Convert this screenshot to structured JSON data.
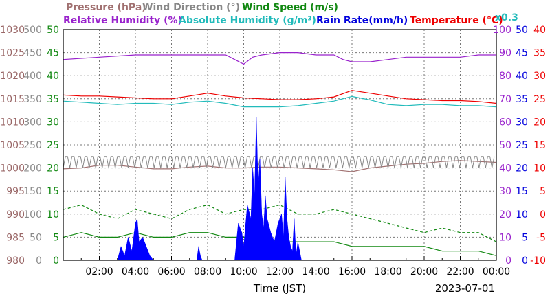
{
  "chart_data": {
    "type": "line",
    "date": "2023-07-01",
    "xlabel": "Time (JST)",
    "x_ticks": [
      "02:00",
      "04:00",
      "06:00",
      "08:00",
      "10:00",
      "12:00",
      "14:00",
      "16:00",
      "18:00",
      "20:00",
      "22:00",
      "00:00"
    ],
    "xlim_hours": [
      0,
      24
    ],
    "grid": true,
    "legend": [
      {
        "text": "Pressure (hPa)",
        "color": "#a07070"
      },
      {
        "text": "Wind Direction (°)",
        "color": "#888888"
      },
      {
        "text": "Wind Speed (m/s)",
        "color": "#118811"
      },
      {
        "text": "Relative Humidity (%)",
        "color": "#9922cc"
      },
      {
        "text": "Absolute Humidity (g/m³)",
        "color": "#22bbbb"
      },
      {
        "text": "Rain Rate(mm/h)",
        "color": "#0000dd"
      },
      {
        "text": "Temperature (°C)",
        "color": "#ee0000"
      }
    ],
    "abs_humidity_note": "x0.3",
    "axes": {
      "pressure": {
        "side": "left",
        "color": "#996666",
        "ticks": [
          "1030",
          "1025",
          "1020",
          "1015",
          "1010",
          "1005",
          "1000",
          "995",
          "990",
          "985",
          "980"
        ],
        "range": [
          980,
          1030
        ]
      },
      "wind_direction": {
        "side": "left",
        "color": "#888888",
        "ticks": [
          "500",
          "450",
          "400",
          "350",
          "300",
          "250",
          "200",
          "150",
          "100",
          "50",
          "0"
        ],
        "range": [
          0,
          500
        ]
      },
      "wind_speed": {
        "side": "left",
        "color": "#118811",
        "ticks": [
          "50",
          "45",
          "40",
          "35",
          "30",
          "25",
          "20",
          "15",
          "10",
          "5",
          "0"
        ],
        "range": [
          0,
          50
        ]
      },
      "humidity": {
        "side": "right",
        "color": "#9922cc",
        "ticks": [
          "100",
          "90",
          "80",
          "70",
          "60",
          "50",
          "40",
          "30",
          "20",
          "10",
          "0"
        ],
        "range": [
          0,
          100
        ]
      },
      "rain": {
        "side": "right",
        "color": "#0000dd",
        "ticks": [
          "50",
          "45",
          "40",
          "35",
          "30",
          "25",
          "20",
          "15",
          "10",
          "5",
          "0"
        ],
        "range": [
          0,
          50
        ]
      },
      "temperature": {
        "side": "right",
        "color": "#ee0000",
        "ticks": [
          "40",
          "35",
          "30",
          "25",
          "20",
          "15",
          "10",
          "5",
          "0",
          "-5",
          "-10"
        ],
        "range": [
          -10,
          40
        ]
      }
    },
    "series": [
      {
        "key": "relative_humidity",
        "color": "#9922cc",
        "axis": "humidity",
        "x": [
          0,
          2,
          4,
          7,
          9,
          9.5,
          10,
          10.5,
          11,
          12,
          13,
          14,
          15,
          15.5,
          16,
          17,
          18,
          19,
          20,
          22,
          23,
          24
        ],
        "y": [
          87,
          88,
          89,
          89,
          89,
          87,
          85,
          88,
          89,
          90,
          90,
          89,
          89,
          87,
          86,
          86,
          87,
          88,
          88,
          88,
          89,
          89
        ]
      },
      {
        "key": "temperature",
        "color": "#ee0000",
        "axis": "temperature",
        "x": [
          0,
          1,
          2,
          3,
          4,
          5,
          6,
          7,
          8,
          9,
          10,
          11,
          12,
          13,
          14,
          15,
          16,
          17,
          18,
          19,
          20,
          21,
          22,
          23,
          24
        ],
        "y": [
          25.8,
          25.6,
          25.6,
          25.4,
          25.2,
          25.0,
          25.0,
          25.6,
          26.2,
          25.6,
          25.2,
          25.0,
          24.8,
          24.8,
          25.0,
          25.4,
          26.8,
          26.2,
          25.6,
          25.0,
          24.8,
          24.6,
          24.6,
          24.4,
          24.0
        ]
      },
      {
        "key": "absolute_humidity_x0.3",
        "color": "#22bbbb",
        "axis": "humidity",
        "x": [
          0,
          1,
          2,
          3,
          4,
          5,
          6,
          7,
          8,
          9,
          10,
          11,
          12,
          13,
          14,
          15,
          16,
          17,
          18,
          19,
          20,
          21,
          22,
          23,
          24
        ],
        "y": [
          69.0,
          68.5,
          68.0,
          67.5,
          68.0,
          68.0,
          67.5,
          68.5,
          69.0,
          68.0,
          66.5,
          66.5,
          66.5,
          67.0,
          68.0,
          69.0,
          71.0,
          69.5,
          67.5,
          67.0,
          67.5,
          67.5,
          67.0,
          67.0,
          66.5
        ]
      },
      {
        "key": "pressure",
        "color": "#a07070",
        "axis": "pressure",
        "x": [
          0,
          1,
          2,
          3,
          4,
          5,
          6,
          7,
          8,
          9,
          10,
          11,
          12,
          13,
          14,
          15,
          16,
          17,
          18,
          19,
          20,
          21,
          22,
          23,
          24
        ],
        "y": [
          999.8,
          1000.0,
          1000.6,
          1000.6,
          1000.2,
          999.8,
          999.8,
          1000.2,
          1000.4,
          1000.0,
          1000.0,
          1000.2,
          1000.2,
          1000.0,
          999.8,
          999.6,
          999.2,
          1000.0,
          1000.4,
          1000.8,
          1001.0,
          1001.4,
          1001.6,
          1001.4,
          1001.2
        ]
      },
      {
        "key": "wind_direction",
        "color": "#888888",
        "axis": "wind_direction",
        "style": "band",
        "x": [
          0,
          24
        ],
        "y_low": 200,
        "y_high": 225
      },
      {
        "key": "wind_speed_gust",
        "color": "#118811",
        "axis": "wind_speed",
        "dash": true,
        "x": [
          0,
          1,
          2,
          3,
          4,
          5,
          6,
          7,
          8,
          9,
          10,
          11,
          12,
          13,
          14,
          15,
          16,
          17,
          18,
          19,
          20,
          21,
          22,
          23,
          24
        ],
        "y": [
          11,
          12,
          10,
          9,
          11,
          10,
          9,
          11,
          12,
          10,
          11,
          11,
          12,
          10,
          10,
          11,
          10,
          9,
          8,
          7,
          6,
          7,
          6,
          6,
          4
        ]
      },
      {
        "key": "wind_speed",
        "color": "#118811",
        "axis": "wind_speed",
        "x": [
          0,
          1,
          2,
          3,
          4,
          5,
          6,
          7,
          8,
          9,
          10,
          11,
          12,
          13,
          14,
          15,
          16,
          17,
          18,
          19,
          20,
          21,
          22,
          23,
          24
        ],
        "y": [
          5,
          6,
          5,
          5,
          6,
          5,
          5,
          6,
          6,
          5,
          5,
          5,
          4,
          4,
          4,
          4,
          3,
          3,
          3,
          3,
          3,
          2,
          2,
          2,
          1
        ]
      },
      {
        "key": "rain_rate",
        "color": "#0000ff",
        "axis": "rain",
        "style": "area",
        "x": [
          0,
          3.0,
          3.2,
          3.4,
          3.6,
          3.8,
          4.0,
          4.1,
          4.2,
          4.4,
          4.6,
          4.8,
          5.0,
          5.2,
          7.4,
          7.5,
          7.6,
          7.7,
          8.0,
          9.5,
          9.7,
          9.9,
          10.0,
          10.2,
          10.4,
          10.5,
          10.6,
          10.7,
          10.8,
          10.9,
          11.0,
          11.1,
          11.2,
          11.3,
          11.5,
          11.7,
          11.9,
          12.1,
          12.2,
          12.3,
          12.4,
          12.5,
          12.6,
          12.7,
          12.8,
          12.9,
          13.0,
          13.1,
          13.2,
          13.4,
          24
        ],
        "y": [
          0,
          0,
          3,
          1,
          5,
          2,
          8,
          9,
          4,
          5,
          3,
          1,
          0,
          0,
          0,
          3,
          1,
          0,
          0,
          0,
          8,
          6,
          3,
          12,
          9,
          20,
          14,
          31,
          16,
          22,
          10,
          7,
          14,
          9,
          6,
          4,
          8,
          10,
          5,
          18,
          9,
          5,
          3,
          2,
          9,
          1,
          4,
          2,
          0,
          0,
          0
        ]
      }
    ]
  }
}
